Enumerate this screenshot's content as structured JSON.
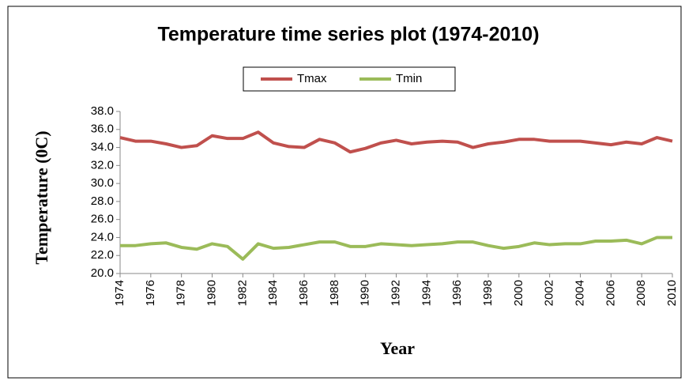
{
  "chart_data": {
    "type": "line",
    "title": "Temperature time series plot (1974-2010)",
    "xlabel": "Year",
    "ylabel": "Temperature (0C)",
    "x": [
      1974,
      1975,
      1976,
      1977,
      1978,
      1979,
      1980,
      1981,
      1982,
      1983,
      1984,
      1985,
      1986,
      1987,
      1988,
      1989,
      1990,
      1991,
      1992,
      1993,
      1994,
      1995,
      1996,
      1997,
      1998,
      1999,
      2000,
      2001,
      2002,
      2003,
      2004,
      2005,
      2006,
      2007,
      2008,
      2009,
      2010
    ],
    "series": [
      {
        "name": "Tmax",
        "color": "#c0504d",
        "values": [
          35.1,
          34.7,
          34.7,
          34.4,
          34.0,
          34.2,
          35.3,
          35.0,
          35.0,
          35.7,
          34.5,
          34.1,
          34.0,
          34.9,
          34.5,
          33.5,
          33.9,
          34.5,
          34.8,
          34.4,
          34.6,
          34.7,
          34.6,
          34.0,
          34.4,
          34.6,
          34.9,
          34.9,
          34.7,
          34.7,
          34.7,
          34.5,
          34.3,
          34.6,
          34.4,
          35.1,
          34.7
        ]
      },
      {
        "name": "Tmin",
        "color": "#9bbb59",
        "values": [
          23.1,
          23.1,
          23.3,
          23.4,
          22.9,
          22.7,
          23.3,
          23.0,
          21.6,
          23.3,
          22.8,
          22.9,
          23.2,
          23.5,
          23.5,
          23.0,
          23.0,
          23.3,
          23.2,
          23.1,
          23.2,
          23.3,
          23.5,
          23.5,
          23.1,
          22.8,
          23.0,
          23.4,
          23.2,
          23.3,
          23.3,
          23.6,
          23.6,
          23.7,
          23.3,
          24.0,
          24.0
        ]
      }
    ],
    "xlim": [
      1974,
      2010
    ],
    "xticks": [
      1974,
      1976,
      1978,
      1980,
      1982,
      1984,
      1986,
      1988,
      1990,
      1992,
      1994,
      1996,
      1998,
      2000,
      2002,
      2004,
      2006,
      2008,
      2010
    ],
    "ylim": [
      20,
      38
    ],
    "yticks": [
      {
        "value": 20,
        "label": "20.0"
      },
      {
        "value": 22,
        "label": "22.0"
      },
      {
        "value": 24,
        "label": "24.0"
      },
      {
        "value": 26,
        "label": "26.0"
      },
      {
        "value": 28,
        "label": "28.0"
      },
      {
        "value": 30,
        "label": "30.0"
      },
      {
        "value": 32,
        "label": "32.0"
      },
      {
        "value": 34,
        "label": "34.0"
      },
      {
        "value": 36,
        "label": "36.0"
      },
      {
        "value": 38,
        "label": "38.0"
      }
    ],
    "grid": false,
    "legend": "top"
  }
}
